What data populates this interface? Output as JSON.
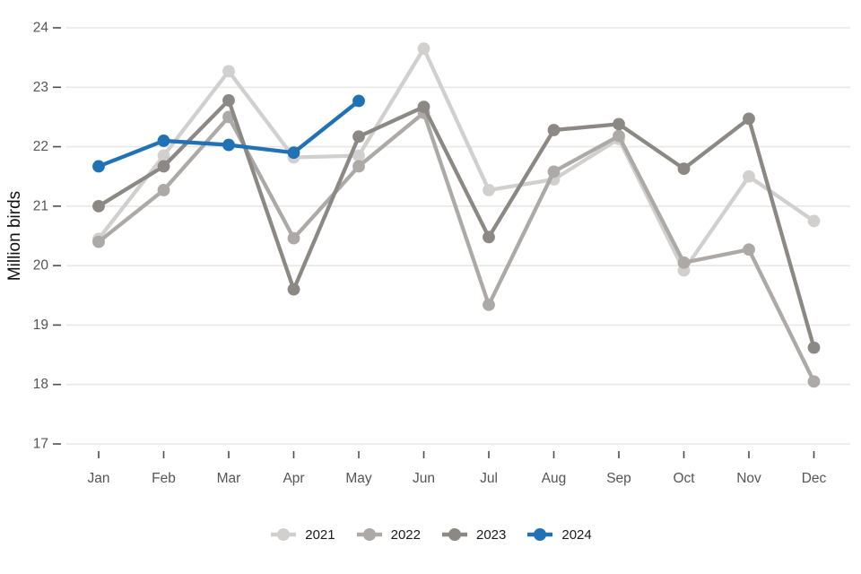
{
  "chart_data": {
    "type": "line",
    "title": "",
    "xlabel": "",
    "ylabel": "Million birds",
    "ylim": [
      17,
      24
    ],
    "yticks": [
      17,
      18,
      19,
      20,
      21,
      22,
      23,
      24
    ],
    "categories": [
      "Jan",
      "Feb",
      "Mar",
      "Apr",
      "May",
      "Jun",
      "Jul",
      "Aug",
      "Sep",
      "Oct",
      "Nov",
      "Dec"
    ],
    "grid": "horizontal-major-only",
    "legend_position": "bottom-center",
    "series": [
      {
        "name": "2021",
        "color": "#d2d0cf",
        "values": [
          20.45,
          21.85,
          23.27,
          21.82,
          21.85,
          23.65,
          21.27,
          21.45,
          22.13,
          19.92,
          21.5,
          20.75
        ]
      },
      {
        "name": "2022",
        "color": "#aca9a7",
        "values": [
          20.4,
          21.27,
          22.5,
          20.46,
          21.67,
          22.57,
          19.34,
          21.58,
          22.18,
          20.05,
          20.27,
          18.05
        ]
      },
      {
        "name": "2023",
        "color": "#8c8884",
        "values": [
          21.0,
          21.67,
          22.78,
          19.6,
          22.17,
          22.67,
          20.48,
          22.28,
          22.38,
          21.63,
          22.47,
          18.62
        ]
      },
      {
        "name": "2024",
        "color": "#2171b5",
        "values": [
          21.67,
          22.1,
          22.03,
          21.9,
          22.77
        ]
      }
    ]
  },
  "colors": {
    "background": "#ffffff",
    "gridline": "#e8e8e8",
    "tick_mark": "#4d4d4d",
    "tick_text": "#555555",
    "axis_title_text": "#111111",
    "legend_text": "#1a1a1a"
  }
}
